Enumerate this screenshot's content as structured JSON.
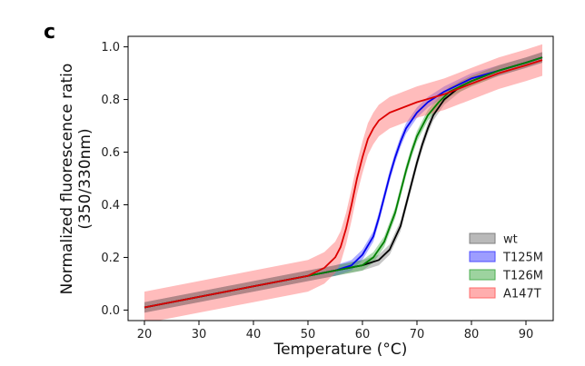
{
  "panel_label": "c",
  "chart_data": {
    "type": "line",
    "title": "",
    "xlabel": "Temperature (°C)",
    "ylabel_lines": [
      "Normalized fluorescence ratio",
      "(350/330nm)"
    ],
    "xlim": [
      17,
      95
    ],
    "ylim": [
      -0.04,
      1.04
    ],
    "xticks": [
      20,
      30,
      40,
      50,
      60,
      70,
      80,
      90
    ],
    "yticks": [
      0.0,
      0.2,
      0.4,
      0.6,
      0.8,
      1.0
    ],
    "ytick_labels": [
      "0.0",
      "0.2",
      "0.4",
      "0.6",
      "0.8",
      "1.0"
    ],
    "legend_position": "bottom-right",
    "series": [
      {
        "name": "wt",
        "color": "#000000",
        "band_color": "#808080",
        "x": [
          20,
          30,
          40,
          50,
          55,
          60,
          63,
          65,
          67,
          68,
          69,
          70,
          71,
          72,
          73,
          75,
          78,
          80,
          85,
          90,
          93
        ],
        "y": [
          0.01,
          0.05,
          0.09,
          0.13,
          0.15,
          0.17,
          0.19,
          0.23,
          0.32,
          0.4,
          0.48,
          0.56,
          0.63,
          0.69,
          0.74,
          0.8,
          0.85,
          0.87,
          0.91,
          0.94,
          0.96
        ],
        "band": 0.02
      },
      {
        "name": "T125M",
        "color": "#0000ee",
        "band_color": "#4c4cff",
        "x": [
          20,
          30,
          40,
          50,
          55,
          58,
          60,
          62,
          63,
          64,
          65,
          66,
          67,
          68,
          70,
          72,
          75,
          80,
          85,
          90,
          93
        ],
        "y": [
          0.01,
          0.05,
          0.09,
          0.13,
          0.15,
          0.17,
          0.21,
          0.28,
          0.35,
          0.43,
          0.51,
          0.58,
          0.64,
          0.69,
          0.75,
          0.79,
          0.83,
          0.88,
          0.91,
          0.94,
          0.96
        ],
        "band": 0.02
      },
      {
        "name": "T126M",
        "color": "#008000",
        "band_color": "#4caf50",
        "x": [
          20,
          30,
          40,
          50,
          55,
          60,
          62,
          64,
          66,
          67,
          68,
          69,
          70,
          72,
          74,
          76,
          80,
          85,
          90,
          93
        ],
        "y": [
          0.01,
          0.05,
          0.09,
          0.13,
          0.15,
          0.17,
          0.2,
          0.26,
          0.37,
          0.45,
          0.53,
          0.6,
          0.66,
          0.74,
          0.79,
          0.83,
          0.87,
          0.91,
          0.94,
          0.96
        ],
        "band": 0.02
      },
      {
        "name": "A147T",
        "color": "#dd0000",
        "band_color": "#ff6b6b",
        "x": [
          20,
          30,
          40,
          50,
          53,
          55,
          56,
          57,
          58,
          59,
          60,
          61,
          62,
          63,
          65,
          70,
          75,
          80,
          85,
          90,
          93
        ],
        "y": [
          0.01,
          0.05,
          0.09,
          0.13,
          0.16,
          0.2,
          0.24,
          0.31,
          0.4,
          0.5,
          0.58,
          0.65,
          0.69,
          0.72,
          0.75,
          0.79,
          0.82,
          0.86,
          0.9,
          0.93,
          0.95
        ],
        "band": 0.06
      }
    ]
  }
}
